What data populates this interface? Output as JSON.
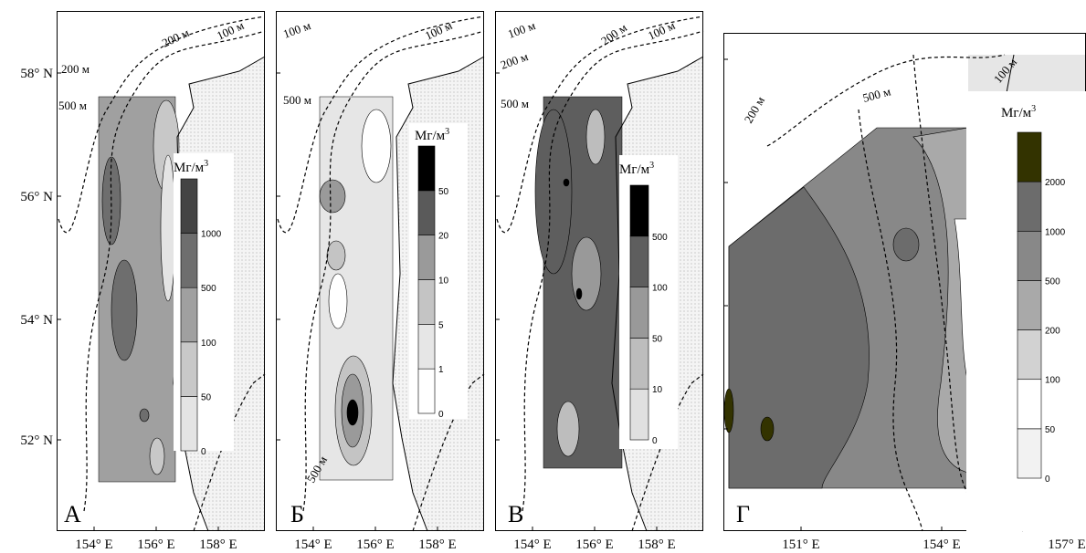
{
  "latitude_labels": [
    "58° N",
    "56° N",
    "54° N",
    "52° N"
  ],
  "panels": [
    {
      "letter": "А",
      "longitude_labels": [
        "154° E",
        "156° E",
        "158° E"
      ],
      "isobath_labels": [
        "200 м",
        "100 м",
        "200 м",
        "500 м"
      ],
      "legend": {
        "title": "Мг/м",
        "title_sup": "3",
        "levels": [
          0,
          50,
          100,
          500,
          1000
        ],
        "colors": [
          "#e4e4e4",
          "#c8c8c8",
          "#a0a0a0",
          "#6e6e6e",
          "#444444"
        ]
      }
    },
    {
      "letter": "Б",
      "longitude_labels": [
        "154° E",
        "156° E",
        "158° E"
      ],
      "isobath_labels": [
        "100 м",
        "100 м",
        "500 м",
        "500 м"
      ],
      "legend": {
        "title": "Мг/м",
        "title_sup": "3",
        "levels": [
          0,
          1,
          5,
          10,
          20,
          50
        ],
        "colors": [
          "#ffffff",
          "#e6e6e6",
          "#c4c4c4",
          "#9a9a9a",
          "#5a5a5a",
          "#000000"
        ]
      }
    },
    {
      "letter": "В",
      "longitude_labels": [
        "154° E",
        "156° E",
        "158° E"
      ],
      "isobath_labels": [
        "100 м",
        "200 м",
        "100 м",
        "200 м",
        "500 м"
      ],
      "legend": {
        "title": "Мг/м",
        "title_sup": "3",
        "levels": [
          0,
          10,
          50,
          100,
          500
        ],
        "colors": [
          "#e0e0e0",
          "#bdbdbd",
          "#999999",
          "#5e5e5e",
          "#000000"
        ]
      }
    },
    {
      "letter": "Г",
      "longitude_labels": [
        "151° E",
        "154° E",
        "157° E"
      ],
      "isobath_labels": [
        "200 м",
        "500 м",
        "100 м"
      ],
      "legend": {
        "title": "Мг/м",
        "title_sup": "3",
        "levels": [
          0,
          50,
          100,
          200,
          500,
          1000,
          2000
        ],
        "colors": [
          "#f2f2f2",
          "#ffffff",
          "#d2d2d2",
          "#a9a9a9",
          "#888888",
          "#6c6c6c",
          "#333300"
        ]
      }
    }
  ]
}
